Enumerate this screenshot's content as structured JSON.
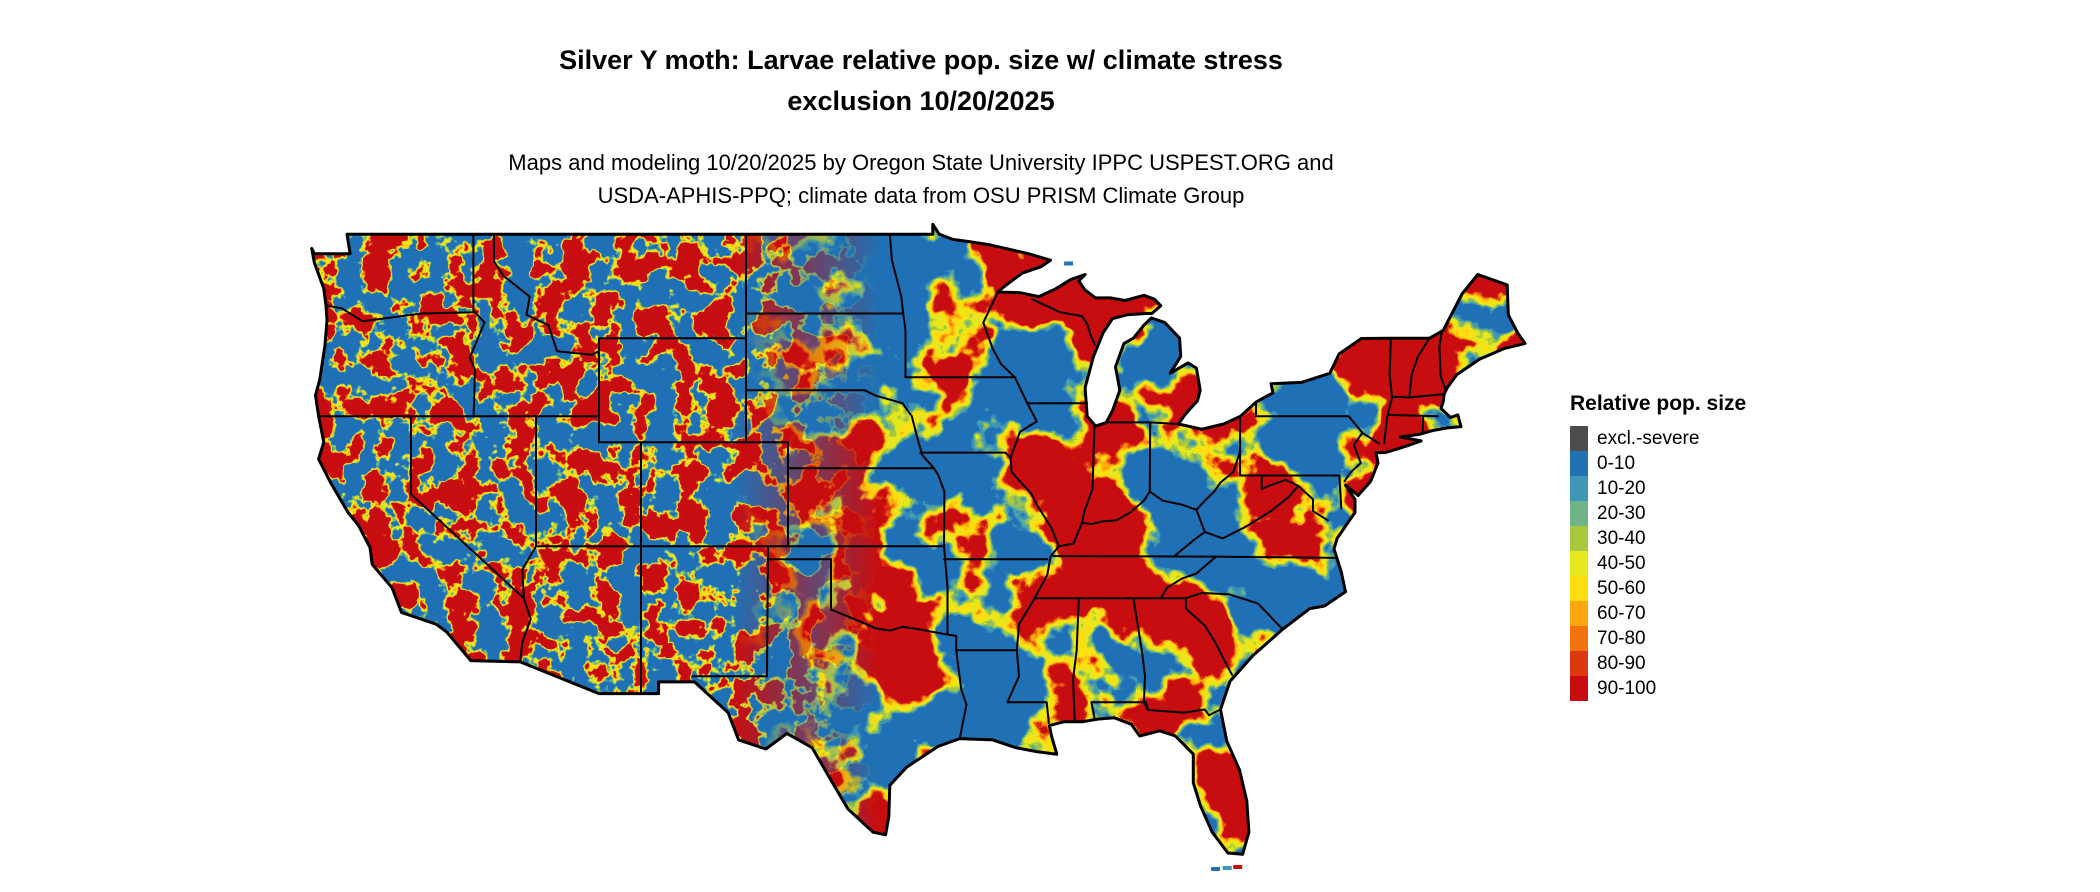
{
  "title": {
    "line1": "Silver Y moth: Larvae relative pop. size w/ climate stress",
    "line2": "exclusion 10/20/2025"
  },
  "subtitle": {
    "line1": "Maps and modeling 10/20/2025 by Oregon State University IPPC USPEST.ORG and",
    "line2": "USDA-APHIS-PPQ; climate data from OSU PRISM Climate Group"
  },
  "map": {
    "region": "Contiguous United States",
    "outline_color": "#000000",
    "background": "#ffffff"
  },
  "legend": {
    "title": "Relative pop. size",
    "entries": [
      {
        "label": "excl.-severe",
        "color": "#4D4D4D"
      },
      {
        "label": "0-10",
        "color": "#2171B5"
      },
      {
        "label": "10-20",
        "color": "#3F97B7"
      },
      {
        "label": "20-30",
        "color": "#6FB387"
      },
      {
        "label": "30-40",
        "color": "#A6C83F"
      },
      {
        "label": "40-50",
        "color": "#E6E81F"
      },
      {
        "label": "50-60",
        "color": "#FFDD0E"
      },
      {
        "label": "60-70",
        "color": "#FFA50F"
      },
      {
        "label": "70-80",
        "color": "#F4720E"
      },
      {
        "label": "80-90",
        "color": "#DD3911"
      },
      {
        "label": "90-100",
        "color": "#C80D10"
      }
    ]
  }
}
